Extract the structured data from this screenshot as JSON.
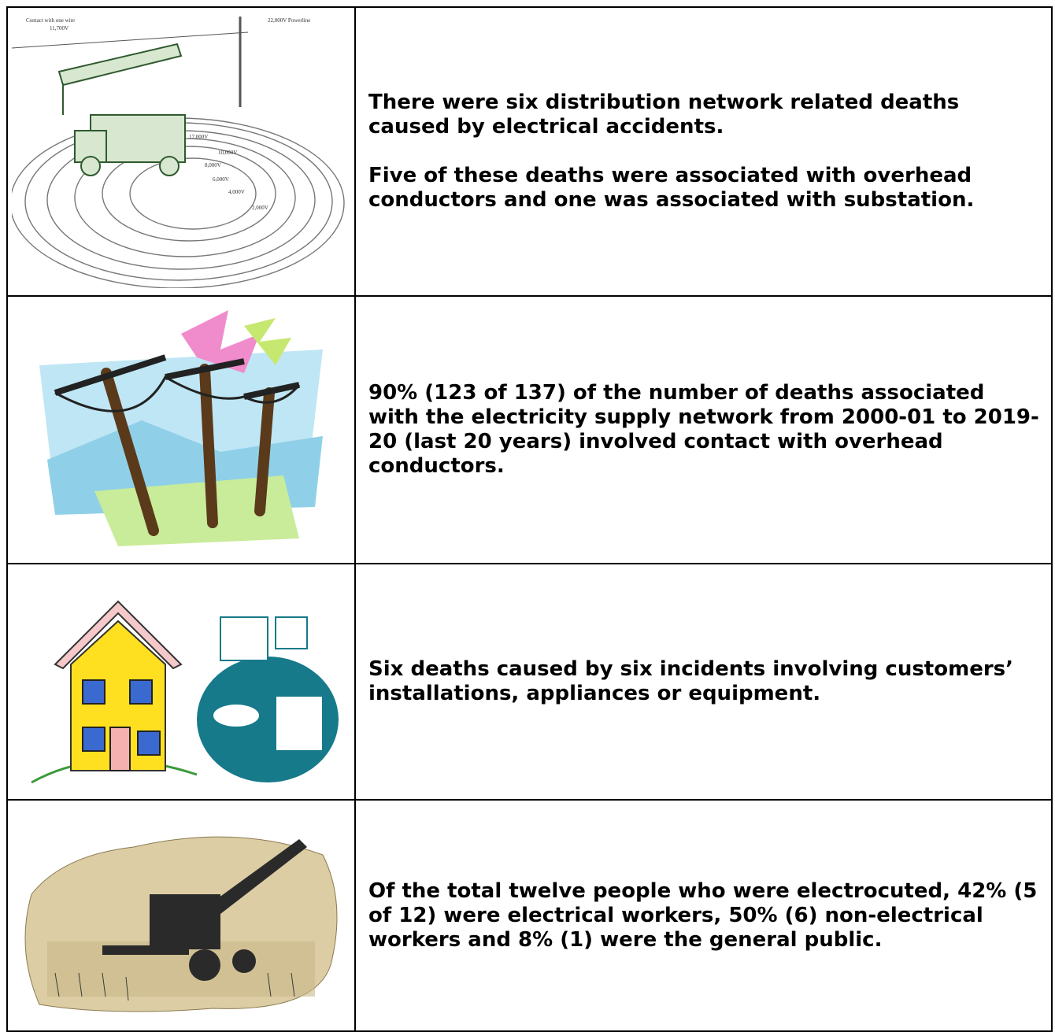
{
  "rows": [
    {
      "image_labels": [
        "Contact with one wire",
        "11,700V",
        "22,000V Powerline",
        "17,000V",
        "10,000V",
        "8,000V",
        "6,000V",
        "4,000V",
        "2,000V"
      ],
      "paragraphs": [
        "There were six distribution network related deaths caused by electrical accidents.",
        "Five of these deaths were associated with overhead conductors and one was associated with substation."
      ]
    },
    {
      "paragraphs": [
        "90% (123 of 137) of the number of deaths associated with the electricity supply network from 2000-01 to 2019-20 (last 20 years) involved contact with overhead conductors."
      ]
    },
    {
      "paragraphs": [
        "Six deaths caused by six incidents involving customers’ installations, appliances or equipment."
      ]
    },
    {
      "paragraphs": [
        "Of the total twelve people who were electrocuted, 42% (5 of 12) were electrical workers, 50% (6) non-electrical workers and 8% (1) were the general public."
      ]
    }
  ]
}
